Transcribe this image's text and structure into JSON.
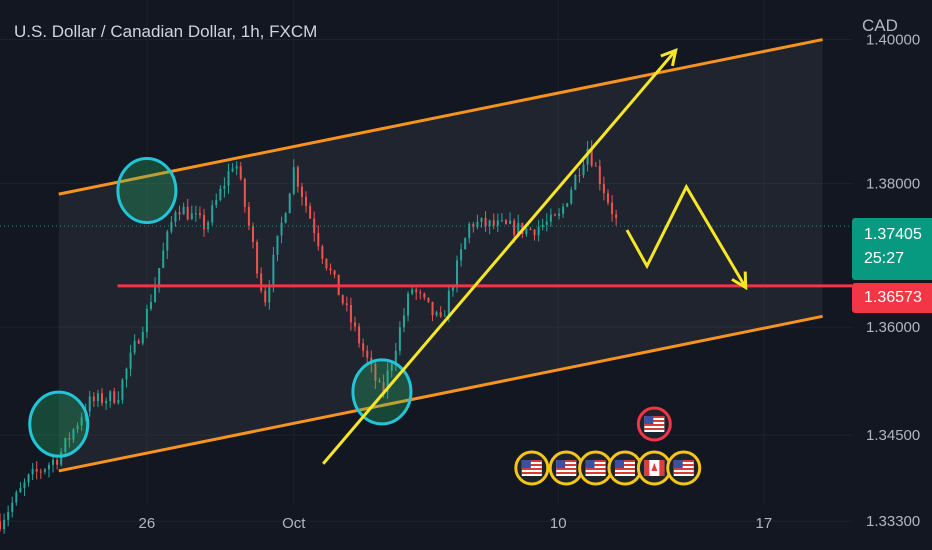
{
  "header": {
    "symbol_title": "U.S. Dollar / Canadian Dollar, 1h, FXCM",
    "currency": "CAD"
  },
  "price_labels": {
    "current_price": "1.37405",
    "countdown": "25:27",
    "level_price": "1.36573"
  },
  "colors": {
    "background": "#131722",
    "channel": "#f7931e",
    "level": "#f23645",
    "trend": "#f5e728",
    "circle": "#22c4d8",
    "up_candle": "#26a69a",
    "down_candle": "#ef5350",
    "current_price": "#089981"
  },
  "chart_data": {
    "type": "candlestick",
    "title": "U.S. Dollar / Canadian Dollar, 1h, FXCM",
    "y_unit": "CAD",
    "ylim": [
      1.329,
      1.4055
    ],
    "y_ticks": [
      1.333,
      1.345,
      1.36,
      1.38,
      1.4
    ],
    "y_tick_labels": [
      "1.33300",
      "1.34500",
      "1.36000",
      "1.38000",
      "1.40000"
    ],
    "x_ticks": [
      {
        "label": "26",
        "date": "2023-09-26"
      },
      {
        "label": "Oct",
        "date": "2023-10-01"
      },
      {
        "label": "10",
        "date": "2023-10-10"
      },
      {
        "label": "17",
        "date": "2023-10-17"
      }
    ],
    "xlim": [
      "2023-09-21",
      "2023-10-20"
    ],
    "price_path": [
      {
        "date": "2023-09-21",
        "price": 1.333
      },
      {
        "date": "2023-09-22",
        "price": 1.339
      },
      {
        "date": "2023-09-23",
        "price": 1.342
      },
      {
        "date": "2023-09-24",
        "price": 1.3495
      },
      {
        "date": "2023-09-25",
        "price": 1.3505
      },
      {
        "date": "2023-09-26",
        "price": 1.362
      },
      {
        "date": "2023-09-27",
        "price": 1.377
      },
      {
        "date": "2023-09-28",
        "price": 1.374
      },
      {
        "date": "2023-09-29",
        "price": 1.3835
      },
      {
        "date": "2023-09-30",
        "price": 1.3635
      },
      {
        "date": "2023-10-01",
        "price": 1.382
      },
      {
        "date": "2023-10-02",
        "price": 1.37
      },
      {
        "date": "2023-10-04",
        "price": 1.3505
      },
      {
        "date": "2023-10-05",
        "price": 1.3655
      },
      {
        "date": "2023-10-06",
        "price": 1.3605
      },
      {
        "date": "2023-10-07",
        "price": 1.3745
      },
      {
        "date": "2023-10-09",
        "price": 1.3735
      },
      {
        "date": "2023-10-10",
        "price": 1.375
      },
      {
        "date": "2023-10-11",
        "price": 1.385
      },
      {
        "date": "2023-10-12",
        "price": 1.3745
      }
    ],
    "current_price": 1.37405,
    "horizontal_level": 1.36573,
    "channel": {
      "upper": [
        {
          "date": "2023-09-23",
          "price": 1.3785
        },
        {
          "date": "2023-10-19",
          "price": 1.4
        }
      ],
      "lower": [
        {
          "date": "2023-09-23",
          "price": 1.34
        },
        {
          "date": "2023-10-19",
          "price": 1.3615
        }
      ]
    },
    "trendline_arrow": [
      {
        "date": "2023-10-02",
        "price": 1.341
      },
      {
        "date": "2023-10-14",
        "price": 1.3985
      }
    ],
    "forecast_zigzag": [
      {
        "date": "2023-10-12",
        "price": 1.3735
      },
      {
        "date": "2023-10-12",
        "price": 1.3685
      },
      {
        "date": "2023-10-13",
        "price": 1.3795
      },
      {
        "date": "2023-10-14",
        "price": 1.3655
      }
    ],
    "highlighted_swings": [
      {
        "date": "2023-09-23",
        "price": 1.3465
      },
      {
        "date": "2023-09-26",
        "price": 1.379
      },
      {
        "date": "2023-10-04",
        "price": 1.351
      }
    ],
    "events": [
      {
        "date": "2023-10-09",
        "country": "US",
        "row": 0
      },
      {
        "date": "2023-10-10",
        "country": "US",
        "row": 0
      },
      {
        "date": "2023-10-11",
        "country": "US",
        "row": 0
      },
      {
        "date": "2023-10-12",
        "country": "US",
        "row": 0
      },
      {
        "date": "2023-10-13",
        "country": "CA",
        "row": 0
      },
      {
        "date": "2023-10-14",
        "country": "US",
        "row": 0
      },
      {
        "date": "2023-10-13",
        "country": "US",
        "row": 1
      }
    ]
  }
}
